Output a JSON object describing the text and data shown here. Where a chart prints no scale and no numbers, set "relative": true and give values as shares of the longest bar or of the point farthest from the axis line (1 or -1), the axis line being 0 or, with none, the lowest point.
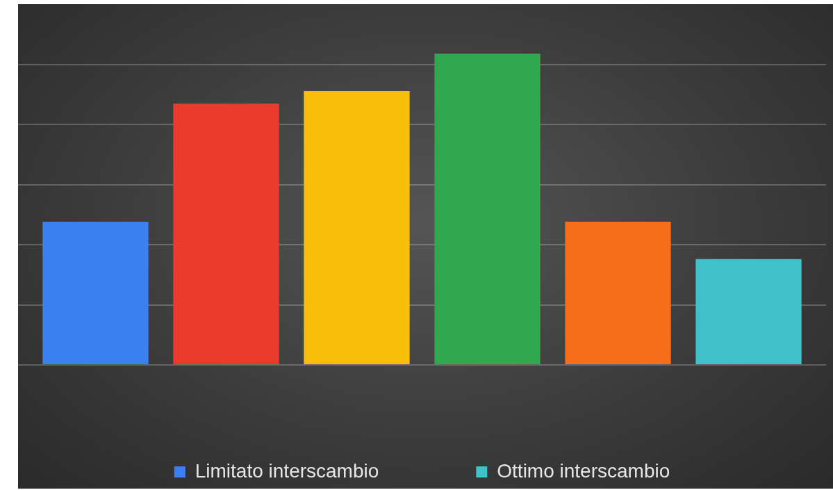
{
  "chart_data": {
    "type": "bar",
    "relative": true,
    "grid": "y",
    "legend": "bottom",
    "categories": [
      null
    ],
    "series": [
      {
        "name": "Limitato interscambio",
        "color": "#3a80f0",
        "values": [
          0.46
        ]
      },
      {
        "color": "#ea3b2c",
        "values": [
          0.84
        ]
      },
      {
        "color": "#f8be0c",
        "values": [
          0.88
        ]
      },
      {
        "color": "#2fa84f",
        "values": [
          1
        ]
      },
      {
        "color": "#f86d1a",
        "values": [
          0.46
        ]
      },
      {
        "name": "Ottimo interscambio",
        "color": "#40c0c8",
        "values": [
          0.34
        ]
      }
    ]
  }
}
